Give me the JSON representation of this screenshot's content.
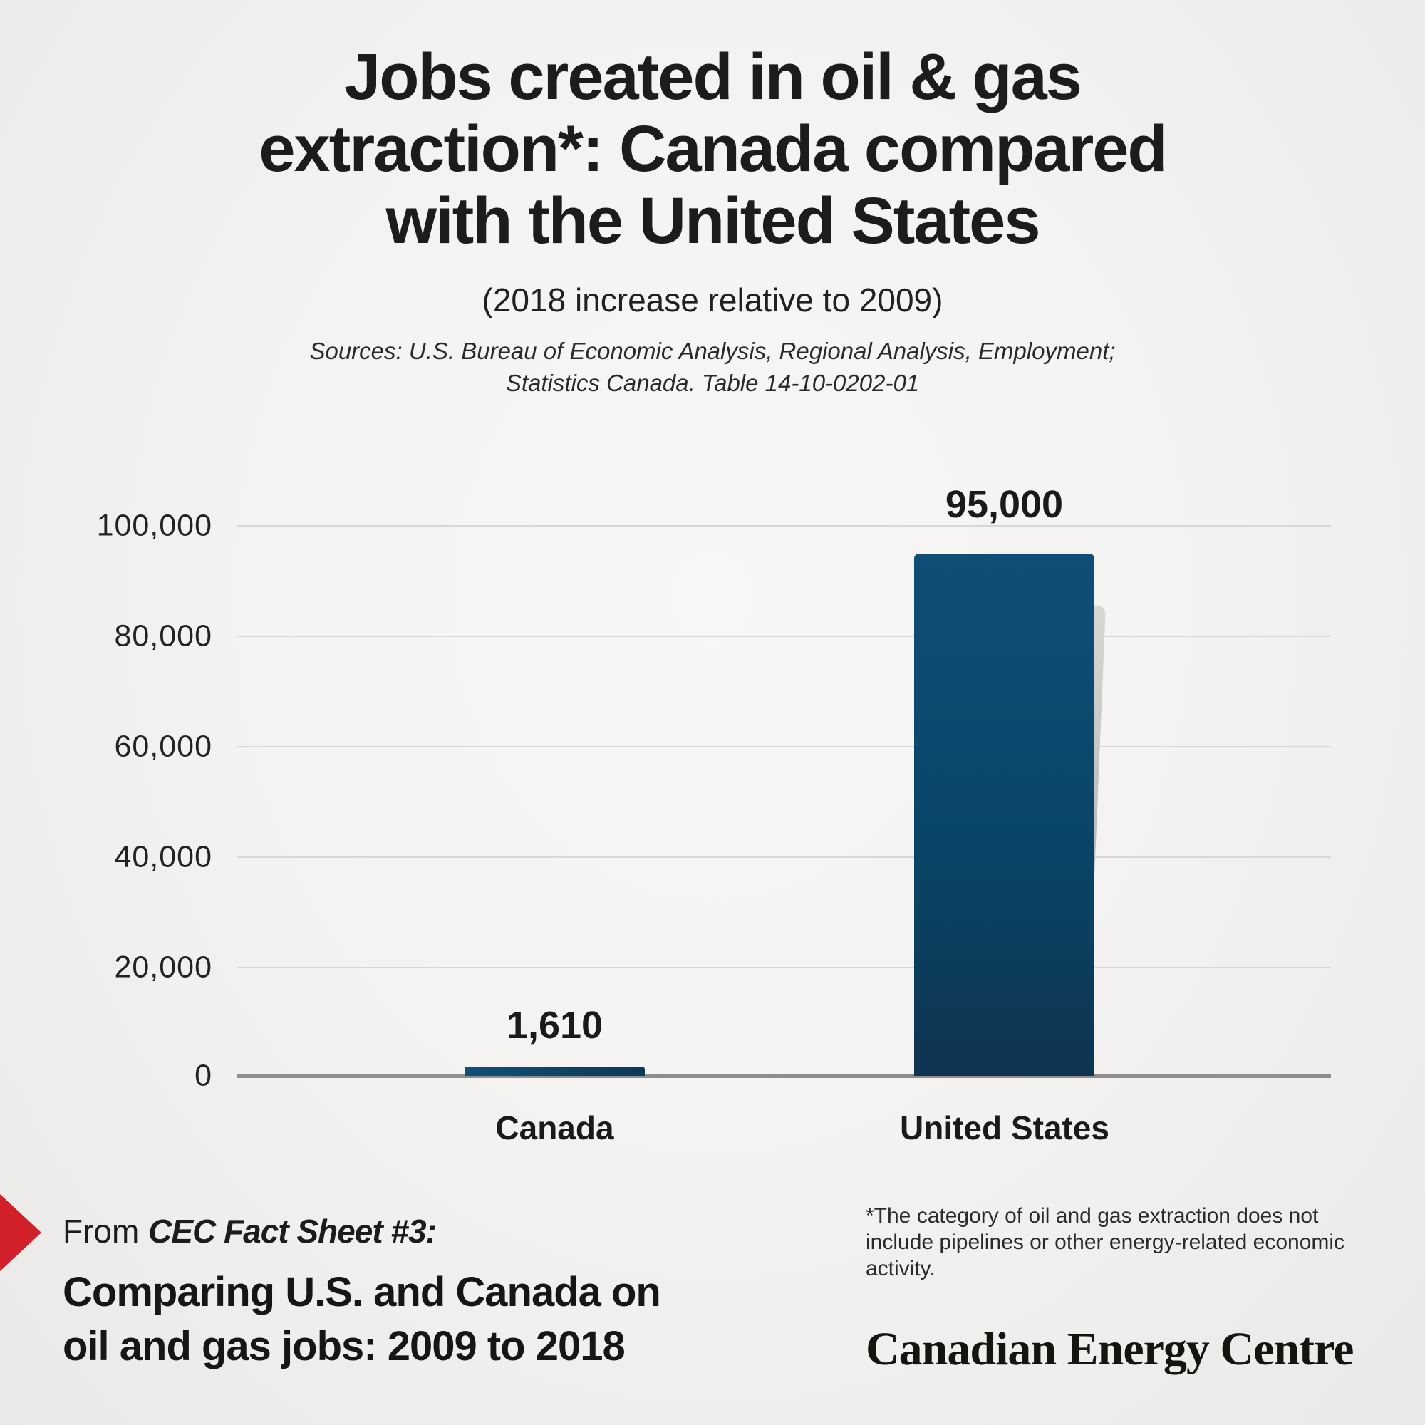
{
  "header": {
    "title_lines": [
      "Jobs created in oil & gas",
      "extraction*: Canada compared",
      "with the United States"
    ],
    "subtitle": "(2018 increase relative to 2009)",
    "sources_lines": [
      "Sources: U.S. Bureau of Economic Analysis, Regional Analysis, Employment;",
      "Statistics Canada. Table 14-10-0202-01"
    ]
  },
  "chart_data": {
    "type": "bar",
    "title": "Jobs created in oil & gas extraction*: Canada compared with the United States",
    "subtitle": "(2018 increase relative to 2009)",
    "source": "Sources: U.S. Bureau of Economic Analysis, Regional Analysis, Employment; Statistics Canada. Table 14-10-0202-01",
    "categories": [
      "Canada",
      "United States"
    ],
    "values": [
      1610,
      95000
    ],
    "value_labels": [
      "1,610",
      "95,000"
    ],
    "xlabel": "",
    "ylabel": "",
    "ylim": [
      0,
      100000
    ],
    "ytick_interval": 20000,
    "yticks_desc": [
      "100,000",
      "80,000",
      "60,000",
      "40,000",
      "20,000",
      "0"
    ],
    "grid": "horizontal",
    "legend_position": "none",
    "bar_color": "#0b4568",
    "bar_shadow_color": "#b3b2b0",
    "gridline_color": "#d8d7d5",
    "axis_color": "#8f8f8d"
  },
  "footer": {
    "from_prefix": "From ",
    "fact_sheet_label": "CEC Fact Sheet #3:",
    "heading_lines": [
      "Comparing U.S. and Canada on",
      "oil and gas jobs: 2009 to 2018"
    ],
    "footnote": "*The category of oil and gas extraction does not include pipelines or other energy-related economic activity.",
    "logo_text": "Canadian Energy Centre",
    "arrow_color": "#d1202a"
  },
  "colors": {
    "background_center": "#f8f7f5",
    "background_edge": "#eae9e7",
    "text": "#1d1c1a"
  }
}
